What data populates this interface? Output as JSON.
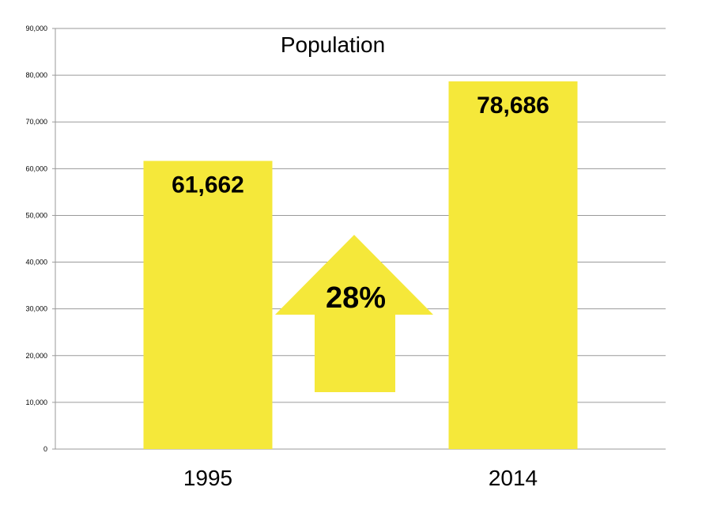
{
  "chart_data": {
    "type": "bar",
    "title": "Population",
    "xlabel": "",
    "ylabel": "",
    "categories": [
      "1995",
      "2014"
    ],
    "values": [
      61662,
      78686
    ],
    "data_labels": [
      "61,662",
      "78,686"
    ],
    "ylim": [
      0,
      90000
    ],
    "yticks": [
      0,
      10000,
      20000,
      30000,
      40000,
      50000,
      60000,
      70000,
      80000,
      90000
    ],
    "ytick_labels": [
      "0",
      "10,000",
      "20,000",
      "30,000",
      "40,000",
      "50,000",
      "60,000",
      "70,000",
      "80,000",
      "90,000"
    ],
    "grid": true,
    "legend": "none",
    "bar_color": "#f5e83a",
    "annotation": {
      "text": "28%",
      "shape": "up-arrow",
      "color": "#f5e83a"
    }
  }
}
